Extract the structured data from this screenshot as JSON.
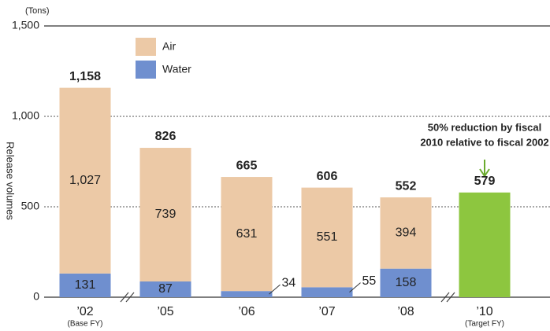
{
  "chart_data": {
    "type": "stacked-bar",
    "unit_label": "(Tons)",
    "y_label": "Release volumes",
    "categories": [
      "’02",
      "’05",
      "’06",
      "’07",
      "’08",
      "’10"
    ],
    "sublabels": [
      "(Base FY)",
      null,
      null,
      null,
      null,
      "(Target FY)"
    ],
    "series": [
      {
        "name": "Water",
        "color": "#6f8fcf",
        "values": [
          131,
          87,
          34,
          55,
          158,
          null
        ]
      },
      {
        "name": "Air",
        "color": "#ecc9a6",
        "values": [
          1027,
          739,
          631,
          551,
          394,
          null
        ],
        "value_labels": [
          "1,027",
          "739",
          "631",
          "551",
          "394",
          null
        ]
      }
    ],
    "totals": [
      1158,
      826,
      665,
      606,
      552,
      null
    ],
    "total_labels": [
      "1,158",
      "826",
      "665",
      "606",
      "552",
      null
    ],
    "target": {
      "value": 579,
      "color": "#8dc63f",
      "label_color": "#1f7aa8"
    },
    "annotation": [
      "50% reduction by fiscal",
      "2010 relative to fiscal 2002"
    ],
    "ylim": [
      0,
      1500
    ],
    "yticks": [
      0,
      500,
      {
        "value": 1000,
        "label": "1,000"
      },
      {
        "value": 1500,
        "label": "1,500"
      }
    ],
    "grid": true
  }
}
